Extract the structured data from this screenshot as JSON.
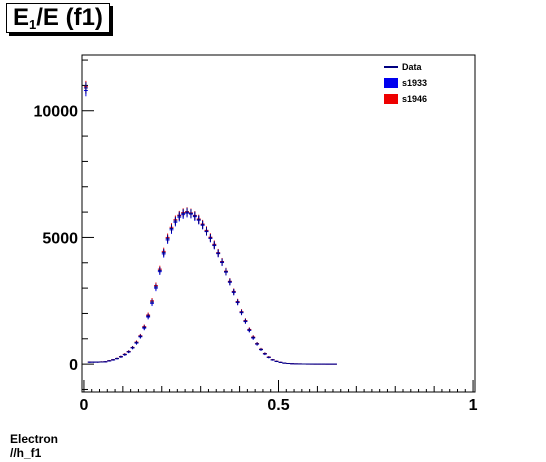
{
  "title": {
    "main": "E",
    "sub": "1",
    "rest": "/E (f1)"
  },
  "footer": {
    "line1": "Electron",
    "line2": "//h_f1"
  },
  "colors": {
    "data": "#000080",
    "s1933": "#0000ee",
    "s1946": "#ee0000"
  },
  "chart_data": {
    "type": "scatter",
    "title": "E1/E (f1)",
    "xlabel": "",
    "ylabel": "",
    "xlim": [
      -0.005,
      1.005
    ],
    "ylim": [
      -1100,
      12200
    ],
    "x_ticks": [
      {
        "value": 0,
        "label": "0"
      },
      {
        "value": 0.5,
        "label": "0.5"
      },
      {
        "value": 1,
        "label": "1"
      }
    ],
    "y_ticks": [
      {
        "value": 0,
        "label": "0"
      },
      {
        "value": 5000,
        "label": "5000"
      },
      {
        "value": 10000,
        "label": "10000"
      }
    ],
    "bin_width": 0.01,
    "x": [
      0.005,
      0.015,
      0.025,
      0.035,
      0.045,
      0.055,
      0.065,
      0.075,
      0.085,
      0.095,
      0.105,
      0.115,
      0.125,
      0.135,
      0.145,
      0.155,
      0.165,
      0.175,
      0.185,
      0.195,
      0.205,
      0.215,
      0.225,
      0.235,
      0.245,
      0.255,
      0.265,
      0.275,
      0.285,
      0.295,
      0.305,
      0.315,
      0.325,
      0.335,
      0.345,
      0.355,
      0.365,
      0.375,
      0.385,
      0.395,
      0.405,
      0.415,
      0.425,
      0.435,
      0.445,
      0.455,
      0.465,
      0.475,
      0.485,
      0.495,
      0.505,
      0.515,
      0.525,
      0.535,
      0.545,
      0.555,
      0.565,
      0.575,
      0.585,
      0.595,
      0.605,
      0.615,
      0.625,
      0.635,
      0.645
    ],
    "series": [
      {
        "name": "Data",
        "values": [
          10900,
          80,
          80,
          80,
          85,
          90,
          130,
          170,
          220,
          290,
          380,
          490,
          650,
          850,
          1100,
          1450,
          1900,
          2450,
          3050,
          3700,
          4400,
          4950,
          5350,
          5650,
          5850,
          5950,
          6000,
          5950,
          5850,
          5700,
          5500,
          5250,
          4980,
          4700,
          4380,
          4030,
          3650,
          3250,
          2850,
          2450,
          2050,
          1700,
          1350,
          1050,
          800,
          580,
          410,
          270,
          170,
          110,
          70,
          40,
          25,
          15,
          10,
          8,
          5,
          3,
          2,
          1,
          1,
          1,
          0,
          0,
          0
        ]
      },
      {
        "name": "s1933",
        "values": [
          10800,
          75,
          78,
          80,
          85,
          92,
          125,
          165,
          215,
          285,
          370,
          480,
          640,
          830,
          1080,
          1420,
          1860,
          2400,
          3000,
          3650,
          4350,
          4900,
          5300,
          5600,
          5800,
          5900,
          5960,
          5920,
          5820,
          5680,
          5480,
          5230,
          4960,
          4680,
          4360,
          4010,
          3630,
          3230,
          2830,
          2430,
          2030,
          1680,
          1330,
          1030,
          790,
          570,
          400,
          265,
          165,
          105,
          68,
          38,
          24,
          14,
          9,
          7,
          5,
          3,
          2,
          1,
          1,
          1,
          0,
          0,
          0
        ]
      },
      {
        "name": "s1946",
        "values": [
          10950,
          85,
          82,
          82,
          88,
          95,
          135,
          175,
          225,
          300,
          390,
          500,
          660,
          870,
          1120,
          1480,
          1940,
          2500,
          3100,
          3750,
          4450,
          5000,
          5400,
          5700,
          5880,
          5980,
          6020,
          5970,
          5870,
          5730,
          5530,
          5280,
          5010,
          4730,
          4400,
          4050,
          3670,
          3270,
          2870,
          2470,
          2070,
          1720,
          1370,
          1070,
          810,
          590,
          420,
          280,
          175,
          115,
          72,
          42,
          26,
          16,
          10,
          8,
          5,
          3,
          2,
          1,
          1,
          1,
          0,
          0,
          0
        ]
      }
    ],
    "legend": {
      "placement": "top-right",
      "entries": [
        {
          "label": "Data",
          "style": "line"
        },
        {
          "label": "s1933",
          "style": "box"
        },
        {
          "label": "s1946",
          "style": "box"
        }
      ]
    },
    "grid": false
  }
}
